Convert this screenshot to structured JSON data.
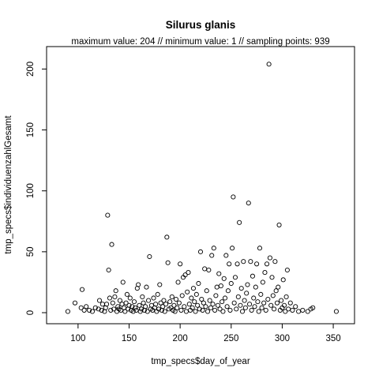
{
  "chart_data": {
    "type": "scatter",
    "title": "Silurus glanis",
    "subtitle": "maximum value: 204  //  minimum value: 1  // sampling points: 939",
    "xlabel": "tmp_specs$day_of_year",
    "ylabel": "tmp_specs$individuenzahlGesamt",
    "xlim": [
      80,
      360
    ],
    "ylim": [
      0,
      210
    ],
    "xticks": [
      100,
      150,
      200,
      250,
      300,
      350
    ],
    "yticks": [
      0,
      50,
      100,
      150,
      200
    ],
    "grid": false,
    "legend": "none",
    "marker": "open-circle",
    "points": [
      [
        90,
        1
      ],
      [
        97,
        8
      ],
      [
        103,
        4
      ],
      [
        104,
        19
      ],
      [
        106,
        2
      ],
      [
        108,
        5
      ],
      [
        111,
        2
      ],
      [
        114,
        1
      ],
      [
        117,
        4
      ],
      [
        120,
        3
      ],
      [
        121,
        10
      ],
      [
        123,
        2
      ],
      [
        124,
        7
      ],
      [
        126,
        1
      ],
      [
        127,
        4
      ],
      [
        128,
        7
      ],
      [
        129,
        80
      ],
      [
        130,
        35
      ],
      [
        131,
        12
      ],
      [
        132,
        2
      ],
      [
        133,
        56
      ],
      [
        134,
        8
      ],
      [
        135,
        3
      ],
      [
        136,
        13
      ],
      [
        137,
        18
      ],
      [
        138,
        1
      ],
      [
        139,
        5
      ],
      [
        140,
        3
      ],
      [
        141,
        10
      ],
      [
        142,
        2
      ],
      [
        143,
        7
      ],
      [
        144,
        25
      ],
      [
        145,
        4
      ],
      [
        146,
        1
      ],
      [
        147,
        8
      ],
      [
        148,
        15
      ],
      [
        149,
        3
      ],
      [
        150,
        6
      ],
      [
        151,
        12
      ],
      [
        152,
        2
      ],
      [
        153,
        5
      ],
      [
        154,
        1
      ],
      [
        155,
        9
      ],
      [
        156,
        4
      ],
      [
        157,
        2
      ],
      [
        158,
        20
      ],
      [
        159,
        23
      ],
      [
        160,
        6
      ],
      [
        161,
        1
      ],
      [
        162,
        3
      ],
      [
        163,
        13
      ],
      [
        164,
        8
      ],
      [
        165,
        2
      ],
      [
        166,
        5
      ],
      [
        167,
        21
      ],
      [
        168,
        1
      ],
      [
        169,
        10
      ],
      [
        170,
        46
      ],
      [
        171,
        3
      ],
      [
        172,
        6
      ],
      [
        173,
        2
      ],
      [
        174,
        12
      ],
      [
        175,
        4
      ],
      [
        176,
        7
      ],
      [
        177,
        1
      ],
      [
        178,
        15
      ],
      [
        179,
        3
      ],
      [
        180,
        23
      ],
      [
        181,
        8
      ],
      [
        182,
        2
      ],
      [
        183,
        5
      ],
      [
        184,
        10
      ],
      [
        185,
        1
      ],
      [
        186,
        7
      ],
      [
        187,
        62
      ],
      [
        188,
        41
      ],
      [
        189,
        3
      ],
      [
        190,
        9
      ],
      [
        191,
        4
      ],
      [
        192,
        13
      ],
      [
        193,
        2
      ],
      [
        194,
        6
      ],
      [
        195,
        1
      ],
      [
        196,
        11
      ],
      [
        197,
        4
      ],
      [
        198,
        25
      ],
      [
        199,
        8
      ],
      [
        200,
        40
      ],
      [
        201,
        2
      ],
      [
        202,
        14
      ],
      [
        203,
        29
      ],
      [
        204,
        5
      ],
      [
        205,
        31
      ],
      [
        206,
        1
      ],
      [
        207,
        17
      ],
      [
        208,
        33
      ],
      [
        209,
        7
      ],
      [
        210,
        2
      ],
      [
        211,
        12
      ],
      [
        212,
        4
      ],
      [
        213,
        20
      ],
      [
        214,
        9
      ],
      [
        215,
        1
      ],
      [
        216,
        15
      ],
      [
        217,
        6
      ],
      [
        218,
        24
      ],
      [
        219,
        3
      ],
      [
        220,
        50
      ],
      [
        221,
        11
      ],
      [
        222,
        2
      ],
      [
        223,
        8
      ],
      [
        224,
        36
      ],
      [
        225,
        5
      ],
      [
        226,
        18
      ],
      [
        227,
        1
      ],
      [
        228,
        35
      ],
      [
        229,
        10
      ],
      [
        230,
        4
      ],
      [
        231,
        47
      ],
      [
        232,
        7
      ],
      [
        233,
        53
      ],
      [
        234,
        2
      ],
      [
        235,
        14
      ],
      [
        236,
        21
      ],
      [
        237,
        6
      ],
      [
        238,
        32
      ],
      [
        239,
        3
      ],
      [
        240,
        22
      ],
      [
        241,
        9
      ],
      [
        242,
        1
      ],
      [
        243,
        28
      ],
      [
        244,
        12
      ],
      [
        245,
        47
      ],
      [
        246,
        5
      ],
      [
        247,
        18
      ],
      [
        248,
        40
      ],
      [
        249,
        2
      ],
      [
        250,
        24
      ],
      [
        251,
        53
      ],
      [
        252,
        95
      ],
      [
        253,
        8
      ],
      [
        254,
        29
      ],
      [
        255,
        3
      ],
      [
        256,
        40
      ],
      [
        257,
        13
      ],
      [
        258,
        74
      ],
      [
        259,
        6
      ],
      [
        260,
        20
      ],
      [
        261,
        1
      ],
      [
        262,
        42
      ],
      [
        263,
        10
      ],
      [
        264,
        4
      ],
      [
        265,
        16
      ],
      [
        266,
        23
      ],
      [
        267,
        90
      ],
      [
        268,
        7
      ],
      [
        269,
        42
      ],
      [
        270,
        2
      ],
      [
        271,
        30
      ],
      [
        272,
        12
      ],
      [
        273,
        5
      ],
      [
        274,
        21
      ],
      [
        275,
        40
      ],
      [
        276,
        9
      ],
      [
        277,
        1
      ],
      [
        278,
        53
      ],
      [
        279,
        15
      ],
      [
        280,
        4
      ],
      [
        281,
        25
      ],
      [
        282,
        8
      ],
      [
        283,
        33
      ],
      [
        284,
        2
      ],
      [
        285,
        40
      ],
      [
        286,
        11
      ],
      [
        287,
        204
      ],
      [
        288,
        45
      ],
      [
        289,
        6
      ],
      [
        290,
        29
      ],
      [
        291,
        14
      ],
      [
        292,
        3
      ],
      [
        293,
        42
      ],
      [
        294,
        18
      ],
      [
        295,
        8
      ],
      [
        296,
        21
      ],
      [
        297,
        72
      ],
      [
        298,
        2
      ],
      [
        299,
        10
      ],
      [
        300,
        4
      ],
      [
        301,
        27
      ],
      [
        302,
        6
      ],
      [
        303,
        1
      ],
      [
        304,
        13
      ],
      [
        305,
        35
      ],
      [
        306,
        3
      ],
      [
        308,
        8
      ],
      [
        310,
        2
      ],
      [
        313,
        5
      ],
      [
        316,
        1
      ],
      [
        320,
        2
      ],
      [
        325,
        1
      ],
      [
        328,
        3
      ],
      [
        330,
        4
      ],
      [
        353,
        1
      ]
    ]
  }
}
